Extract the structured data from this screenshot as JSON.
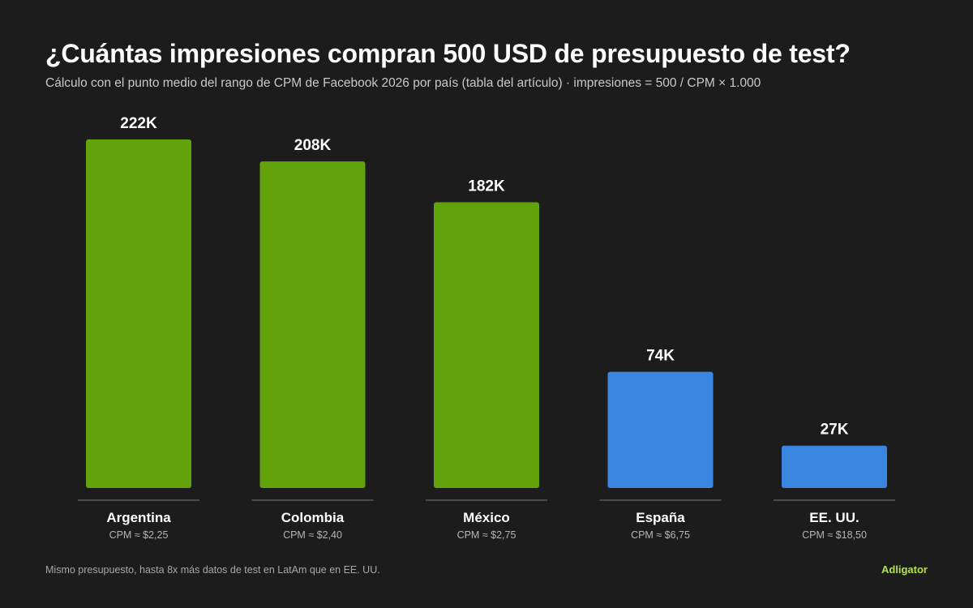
{
  "header": {
    "title": "¿Cuántas impresiones compran 500 USD de presupuesto de test?",
    "subtitle": "Cálculo con el punto medio del rango de CPM de Facebook 2026 por país (tabla del artículo) · impresiones = 500 / CPM × 1.000"
  },
  "colors": {
    "background": "#1c1c1c",
    "latam_bar": "#62a30c",
    "other_bar": "#3a86e0",
    "baseline": "#5a5a5a",
    "brand": "#b6e04b"
  },
  "chart_data": {
    "type": "bar",
    "title": "¿Cuántas impresiones compran 500 USD de presupuesto de test?",
    "subtitle": "Cálculo con el punto medio del rango de CPM de Facebook 2026 por país (tabla del artículo) · impresiones = 500 / CPM × 1.000",
    "categories": [
      "Argentina",
      "Colombia",
      "México",
      "España",
      "EE. UU."
    ],
    "values": [
      222,
      208,
      182,
      74,
      27
    ],
    "value_labels": [
      "222K",
      "208K",
      "182K",
      "74K",
      "27K"
    ],
    "sublabels": [
      "CPM ≈ $2,25",
      "CPM ≈ $2,40",
      "CPM ≈ $2,75",
      "CPM ≈ $6,75",
      "CPM ≈ $18,50"
    ],
    "bar_colors": [
      "#62a30c",
      "#62a30c",
      "#62a30c",
      "#3a86e0",
      "#3a86e0"
    ],
    "ylim": [
      0,
      222
    ],
    "grid": false,
    "legend": "none"
  },
  "footer": {
    "note": "Mismo presupuesto, hasta 8x más datos de test en LatAm que en EE. UU.",
    "brand": "Adligator"
  }
}
